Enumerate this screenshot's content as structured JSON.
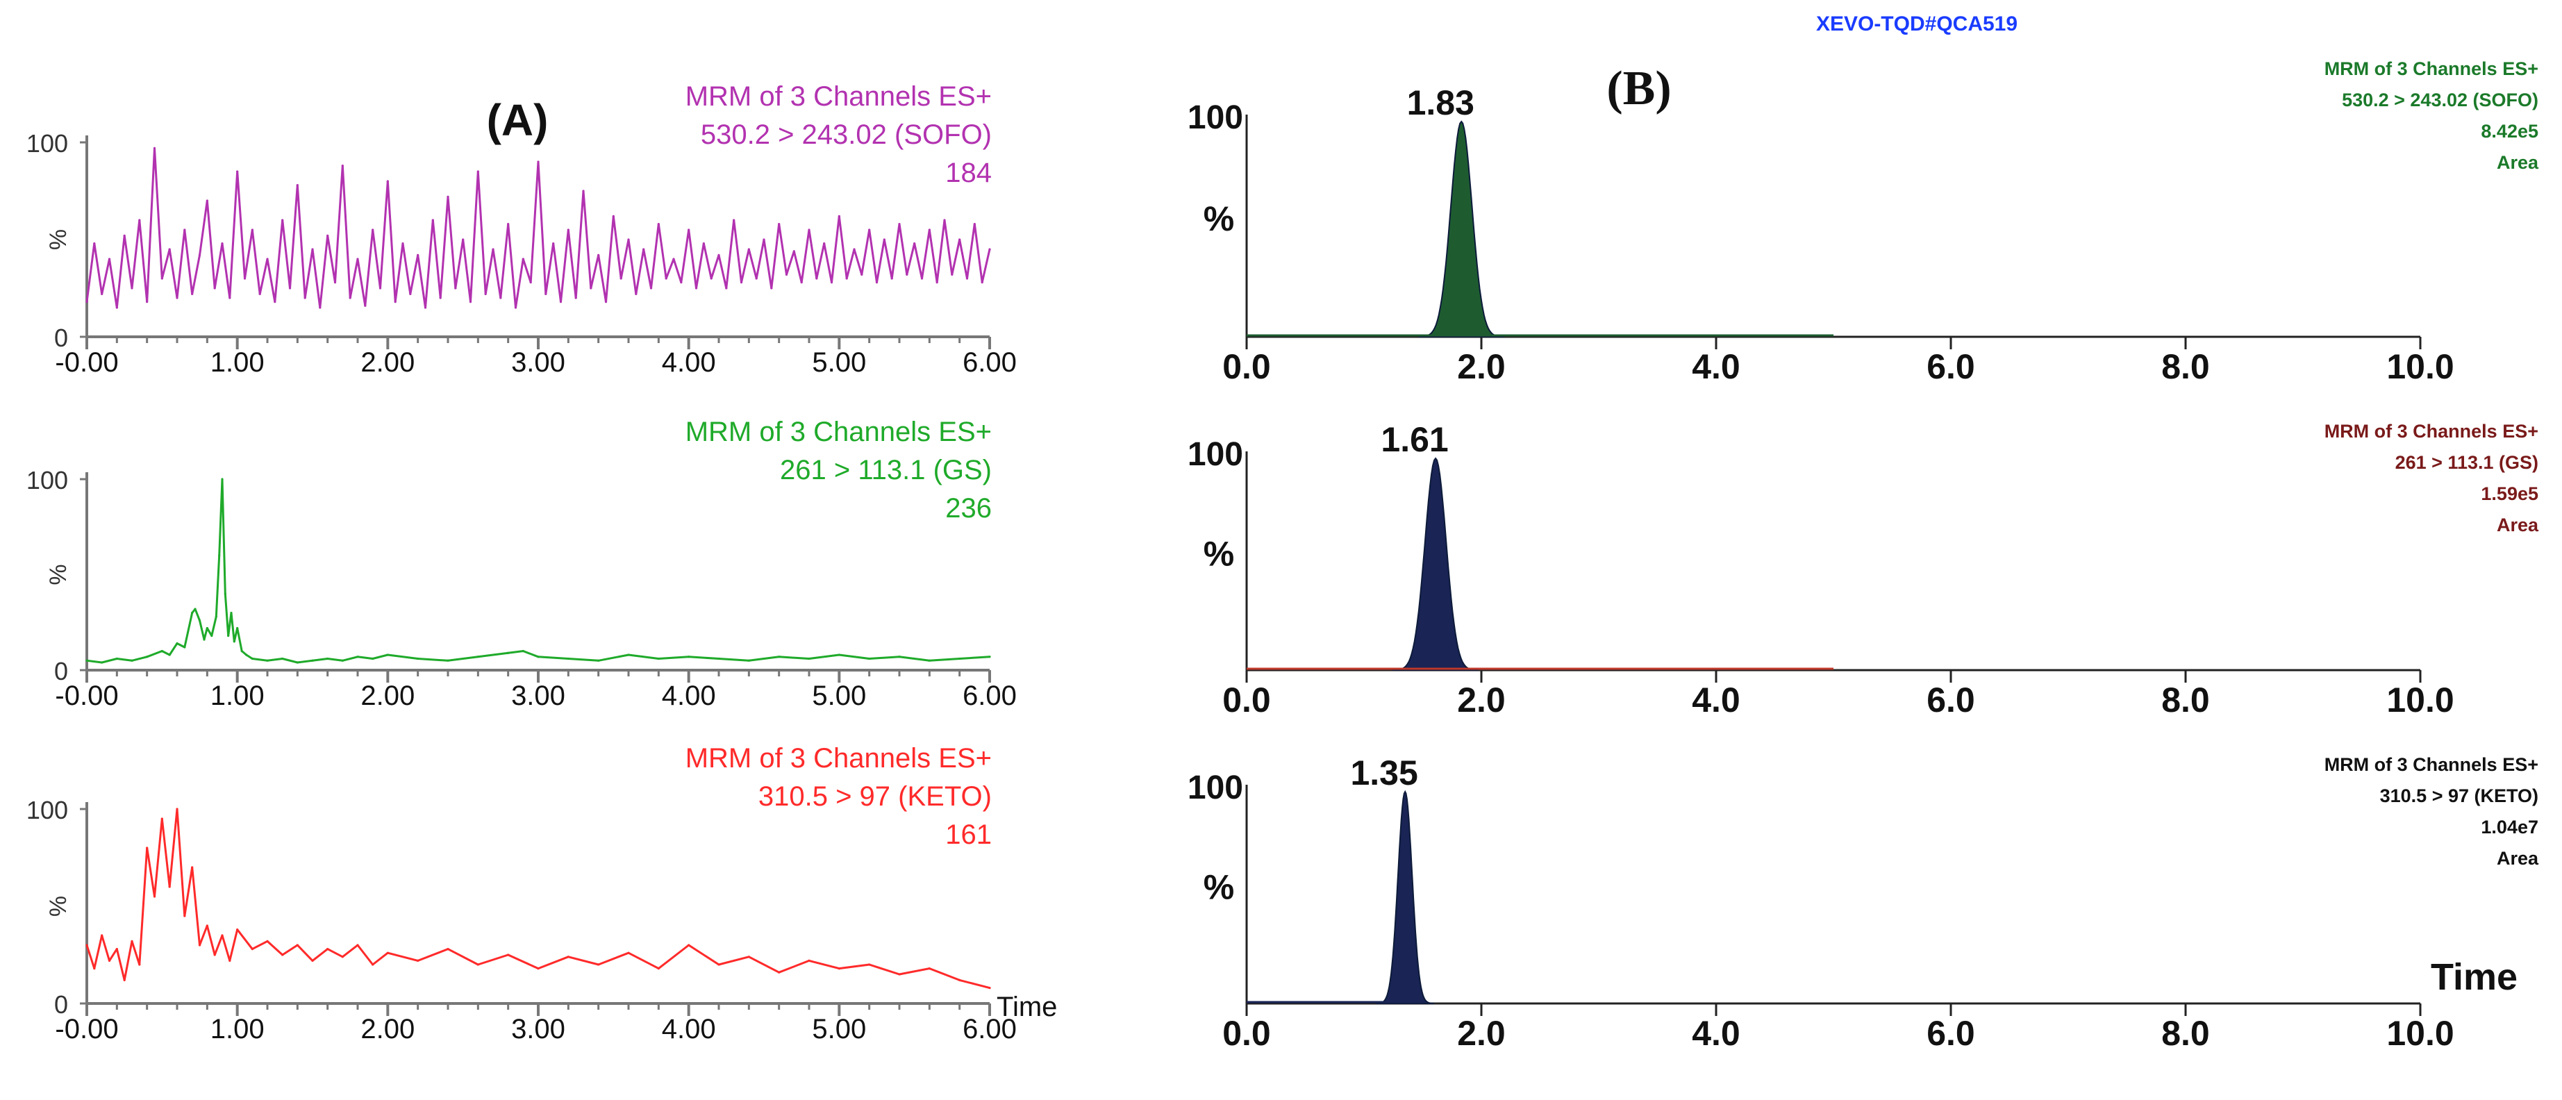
{
  "header": {
    "instrument": "XEVO-TQD#QCA519",
    "instrument_color": "#1a3cff"
  },
  "panel_a": {
    "label": "(A)"
  },
  "panel_b": {
    "label": "(B)"
  },
  "chart_data": [
    {
      "id": "A1",
      "type": "line",
      "panel": "A",
      "color": "#b232b0",
      "title_lines": [
        "MRM of 3 Channels ES+",
        "530.2 > 243.02 (SOFO)",
        "184"
      ],
      "xlim": [
        0,
        6
      ],
      "ylim": [
        0,
        100
      ],
      "xticks": [
        "-0.00",
        "1.00",
        "2.00",
        "3.00",
        "4.00",
        "5.00",
        "6.00"
      ],
      "yticks": [
        "0",
        "100"
      ],
      "ylabel": "%",
      "xlabel": "",
      "series": [
        {
          "name": "530.2 > 243.02 (SOFO)",
          "x": [
            0.0,
            0.05,
            0.1,
            0.15,
            0.2,
            0.25,
            0.3,
            0.35,
            0.4,
            0.45,
            0.5,
            0.55,
            0.6,
            0.65,
            0.7,
            0.75,
            0.8,
            0.85,
            0.9,
            0.95,
            1.0,
            1.05,
            1.1,
            1.15,
            1.2,
            1.25,
            1.3,
            1.35,
            1.4,
            1.45,
            1.5,
            1.55,
            1.6,
            1.65,
            1.7,
            1.75,
            1.8,
            1.85,
            1.9,
            1.95,
            2.0,
            2.05,
            2.1,
            2.15,
            2.2,
            2.25,
            2.3,
            2.35,
            2.4,
            2.45,
            2.5,
            2.55,
            2.6,
            2.65,
            2.7,
            2.75,
            2.8,
            2.85,
            2.9,
            2.95,
            3.0,
            3.05,
            3.1,
            3.15,
            3.2,
            3.25,
            3.3,
            3.35,
            3.4,
            3.45,
            3.5,
            3.55,
            3.6,
            3.65,
            3.7,
            3.75,
            3.8,
            3.85,
            3.9,
            3.95,
            4.0,
            4.05,
            4.1,
            4.15,
            4.2,
            4.25,
            4.3,
            4.35,
            4.4,
            4.45,
            4.5,
            4.55,
            4.6,
            4.65,
            4.7,
            4.75,
            4.8,
            4.85,
            4.9,
            4.95,
            5.0,
            5.05,
            5.1,
            5.15,
            5.2,
            5.25,
            5.3,
            5.35,
            5.4,
            5.45,
            5.5,
            5.55,
            5.6,
            5.65,
            5.7,
            5.75,
            5.8,
            5.85,
            5.9,
            5.95,
            6.0
          ],
          "y": [
            18,
            48,
            22,
            40,
            15,
            52,
            25,
            60,
            18,
            97,
            30,
            45,
            20,
            55,
            22,
            42,
            70,
            25,
            48,
            20,
            85,
            30,
            55,
            22,
            40,
            18,
            60,
            25,
            78,
            20,
            45,
            15,
            52,
            28,
            88,
            20,
            40,
            16,
            55,
            25,
            80,
            18,
            48,
            22,
            42,
            15,
            60,
            20,
            72,
            25,
            50,
            18,
            85,
            22,
            45,
            20,
            58,
            15,
            40,
            28,
            90,
            22,
            48,
            18,
            55,
            20,
            75,
            25,
            42,
            18,
            62,
            30,
            50,
            22,
            45,
            25,
            58,
            30,
            40,
            28,
            55,
            25,
            48,
            30,
            42,
            25,
            60,
            28,
            45,
            30,
            50,
            25,
            58,
            32,
            44,
            28,
            55,
            30,
            48,
            28,
            62,
            30,
            45,
            32,
            55,
            28,
            50,
            30,
            58,
            32,
            48,
            30,
            55,
            28,
            60,
            32,
            50,
            30,
            58,
            28,
            45
          ]
        }
      ]
    },
    {
      "id": "A2",
      "type": "line",
      "panel": "A",
      "color": "#1faa2a",
      "title_lines": [
        "MRM of 3 Channels ES+",
        "261 > 113.1 (GS)",
        "236"
      ],
      "xlim": [
        0,
        6
      ],
      "ylim": [
        0,
        100
      ],
      "xticks": [
        "-0.00",
        "1.00",
        "2.00",
        "3.00",
        "4.00",
        "5.00",
        "6.00"
      ],
      "yticks": [
        "0",
        "100"
      ],
      "ylabel": "%",
      "xlabel": "",
      "series": [
        {
          "name": "261 > 113.1 (GS)",
          "x": [
            0.0,
            0.1,
            0.2,
            0.3,
            0.4,
            0.5,
            0.55,
            0.6,
            0.65,
            0.7,
            0.72,
            0.75,
            0.78,
            0.8,
            0.83,
            0.86,
            0.88,
            0.9,
            0.92,
            0.94,
            0.96,
            0.98,
            1.0,
            1.03,
            1.06,
            1.1,
            1.2,
            1.3,
            1.4,
            1.5,
            1.6,
            1.7,
            1.8,
            1.9,
            2.0,
            2.2,
            2.4,
            2.6,
            2.8,
            2.9,
            3.0,
            3.2,
            3.4,
            3.6,
            3.8,
            4.0,
            4.2,
            4.4,
            4.6,
            4.8,
            5.0,
            5.2,
            5.4,
            5.6,
            5.8,
            6.0
          ],
          "y": [
            5,
            4,
            6,
            5,
            7,
            10,
            8,
            14,
            12,
            30,
            32,
            26,
            16,
            22,
            18,
            28,
            60,
            100,
            40,
            18,
            30,
            15,
            22,
            10,
            8,
            6,
            5,
            6,
            4,
            5,
            6,
            5,
            7,
            6,
            8,
            6,
            5,
            7,
            9,
            10,
            7,
            6,
            5,
            8,
            6,
            7,
            6,
            5,
            7,
            6,
            8,
            6,
            7,
            5,
            6,
            7
          ]
        }
      ]
    },
    {
      "id": "A3",
      "type": "line",
      "panel": "A",
      "color": "#ff2a2a",
      "title_lines": [
        "MRM of 3 Channels ES+",
        "310.5 > 97 (KETO)",
        "161"
      ],
      "xlim": [
        0,
        6
      ],
      "ylim": [
        0,
        100
      ],
      "xticks": [
        "-0.00",
        "1.00",
        "2.00",
        "3.00",
        "4.00",
        "5.00",
        "6.00"
      ],
      "yticks": [
        "0",
        "100"
      ],
      "ylabel": "%",
      "xlabel": "Time",
      "series": [
        {
          "name": "310.5 > 97 (KETO)",
          "x": [
            0.0,
            0.05,
            0.1,
            0.15,
            0.2,
            0.25,
            0.3,
            0.35,
            0.4,
            0.45,
            0.5,
            0.55,
            0.6,
            0.65,
            0.7,
            0.75,
            0.8,
            0.85,
            0.9,
            0.95,
            1.0,
            1.1,
            1.2,
            1.3,
            1.4,
            1.5,
            1.6,
            1.7,
            1.8,
            1.9,
            2.0,
            2.2,
            2.4,
            2.6,
            2.8,
            3.0,
            3.2,
            3.4,
            3.6,
            3.8,
            4.0,
            4.2,
            4.4,
            4.6,
            4.8,
            5.0,
            5.2,
            5.4,
            5.6,
            5.8,
            6.0
          ],
          "y": [
            30,
            18,
            35,
            22,
            28,
            12,
            32,
            20,
            80,
            55,
            95,
            60,
            100,
            45,
            70,
            30,
            40,
            25,
            35,
            22,
            38,
            28,
            32,
            25,
            30,
            22,
            28,
            24,
            30,
            20,
            26,
            22,
            28,
            20,
            25,
            18,
            24,
            20,
            26,
            18,
            30,
            20,
            24,
            16,
            22,
            18,
            20,
            15,
            18,
            12,
            8
          ]
        }
      ]
    },
    {
      "id": "B1",
      "type": "area",
      "panel": "B",
      "color": "#1e5c30",
      "title_lines": [
        "MRM of 3 Channels ES+",
        "530.2 > 243.02 (SOFO)",
        "8.42e5",
        "Area"
      ],
      "label_color": "#1b7a2a",
      "peak_rt": 1.83,
      "peak_label": "1.83",
      "peak_width": 0.09,
      "trace_end": 5.0,
      "xlim": [
        0,
        10
      ],
      "ylim": [
        0,
        100
      ],
      "xticks": [
        "0.0",
        "2.0",
        "4.0",
        "6.0",
        "8.0",
        "10.0"
      ],
      "yticks": [
        "100"
      ],
      "ylabel": "%",
      "xlabel": "",
      "baseline_color": "#1e5c30"
    },
    {
      "id": "B2",
      "type": "area",
      "panel": "B",
      "color": "#1a2455",
      "title_lines": [
        "MRM of 3 Channels ES+",
        "261 > 113.1 (GS)",
        "1.59e5",
        "Area"
      ],
      "label_color": "#7a1a1a",
      "peak_rt": 1.61,
      "peak_label": "1.61",
      "peak_width": 0.09,
      "trace_end": 5.0,
      "xlim": [
        0,
        10
      ],
      "ylim": [
        0,
        100
      ],
      "xticks": [
        "0.0",
        "2.0",
        "4.0",
        "6.0",
        "8.0",
        "10.0"
      ],
      "yticks": [
        "100"
      ],
      "ylabel": "%",
      "xlabel": "",
      "baseline_color": "#c0392b"
    },
    {
      "id": "B3",
      "type": "area",
      "panel": "B",
      "color": "#1a2455",
      "title_lines": [
        "MRM of 3 Channels ES+",
        "310.5 > 97 (KETO)",
        "1.04e7",
        "Area"
      ],
      "label_color": "#111111",
      "peak_rt": 1.35,
      "peak_label": "1.35",
      "peak_width": 0.06,
      "trace_end": 1.5,
      "xlim": [
        0,
        10
      ],
      "ylim": [
        0,
        100
      ],
      "xticks": [
        "0.0",
        "2.0",
        "4.0",
        "6.0",
        "8.0",
        "10.0"
      ],
      "yticks": [
        "100"
      ],
      "ylabel": "%",
      "xlabel": "Time",
      "baseline_color": "#1a2455"
    }
  ]
}
